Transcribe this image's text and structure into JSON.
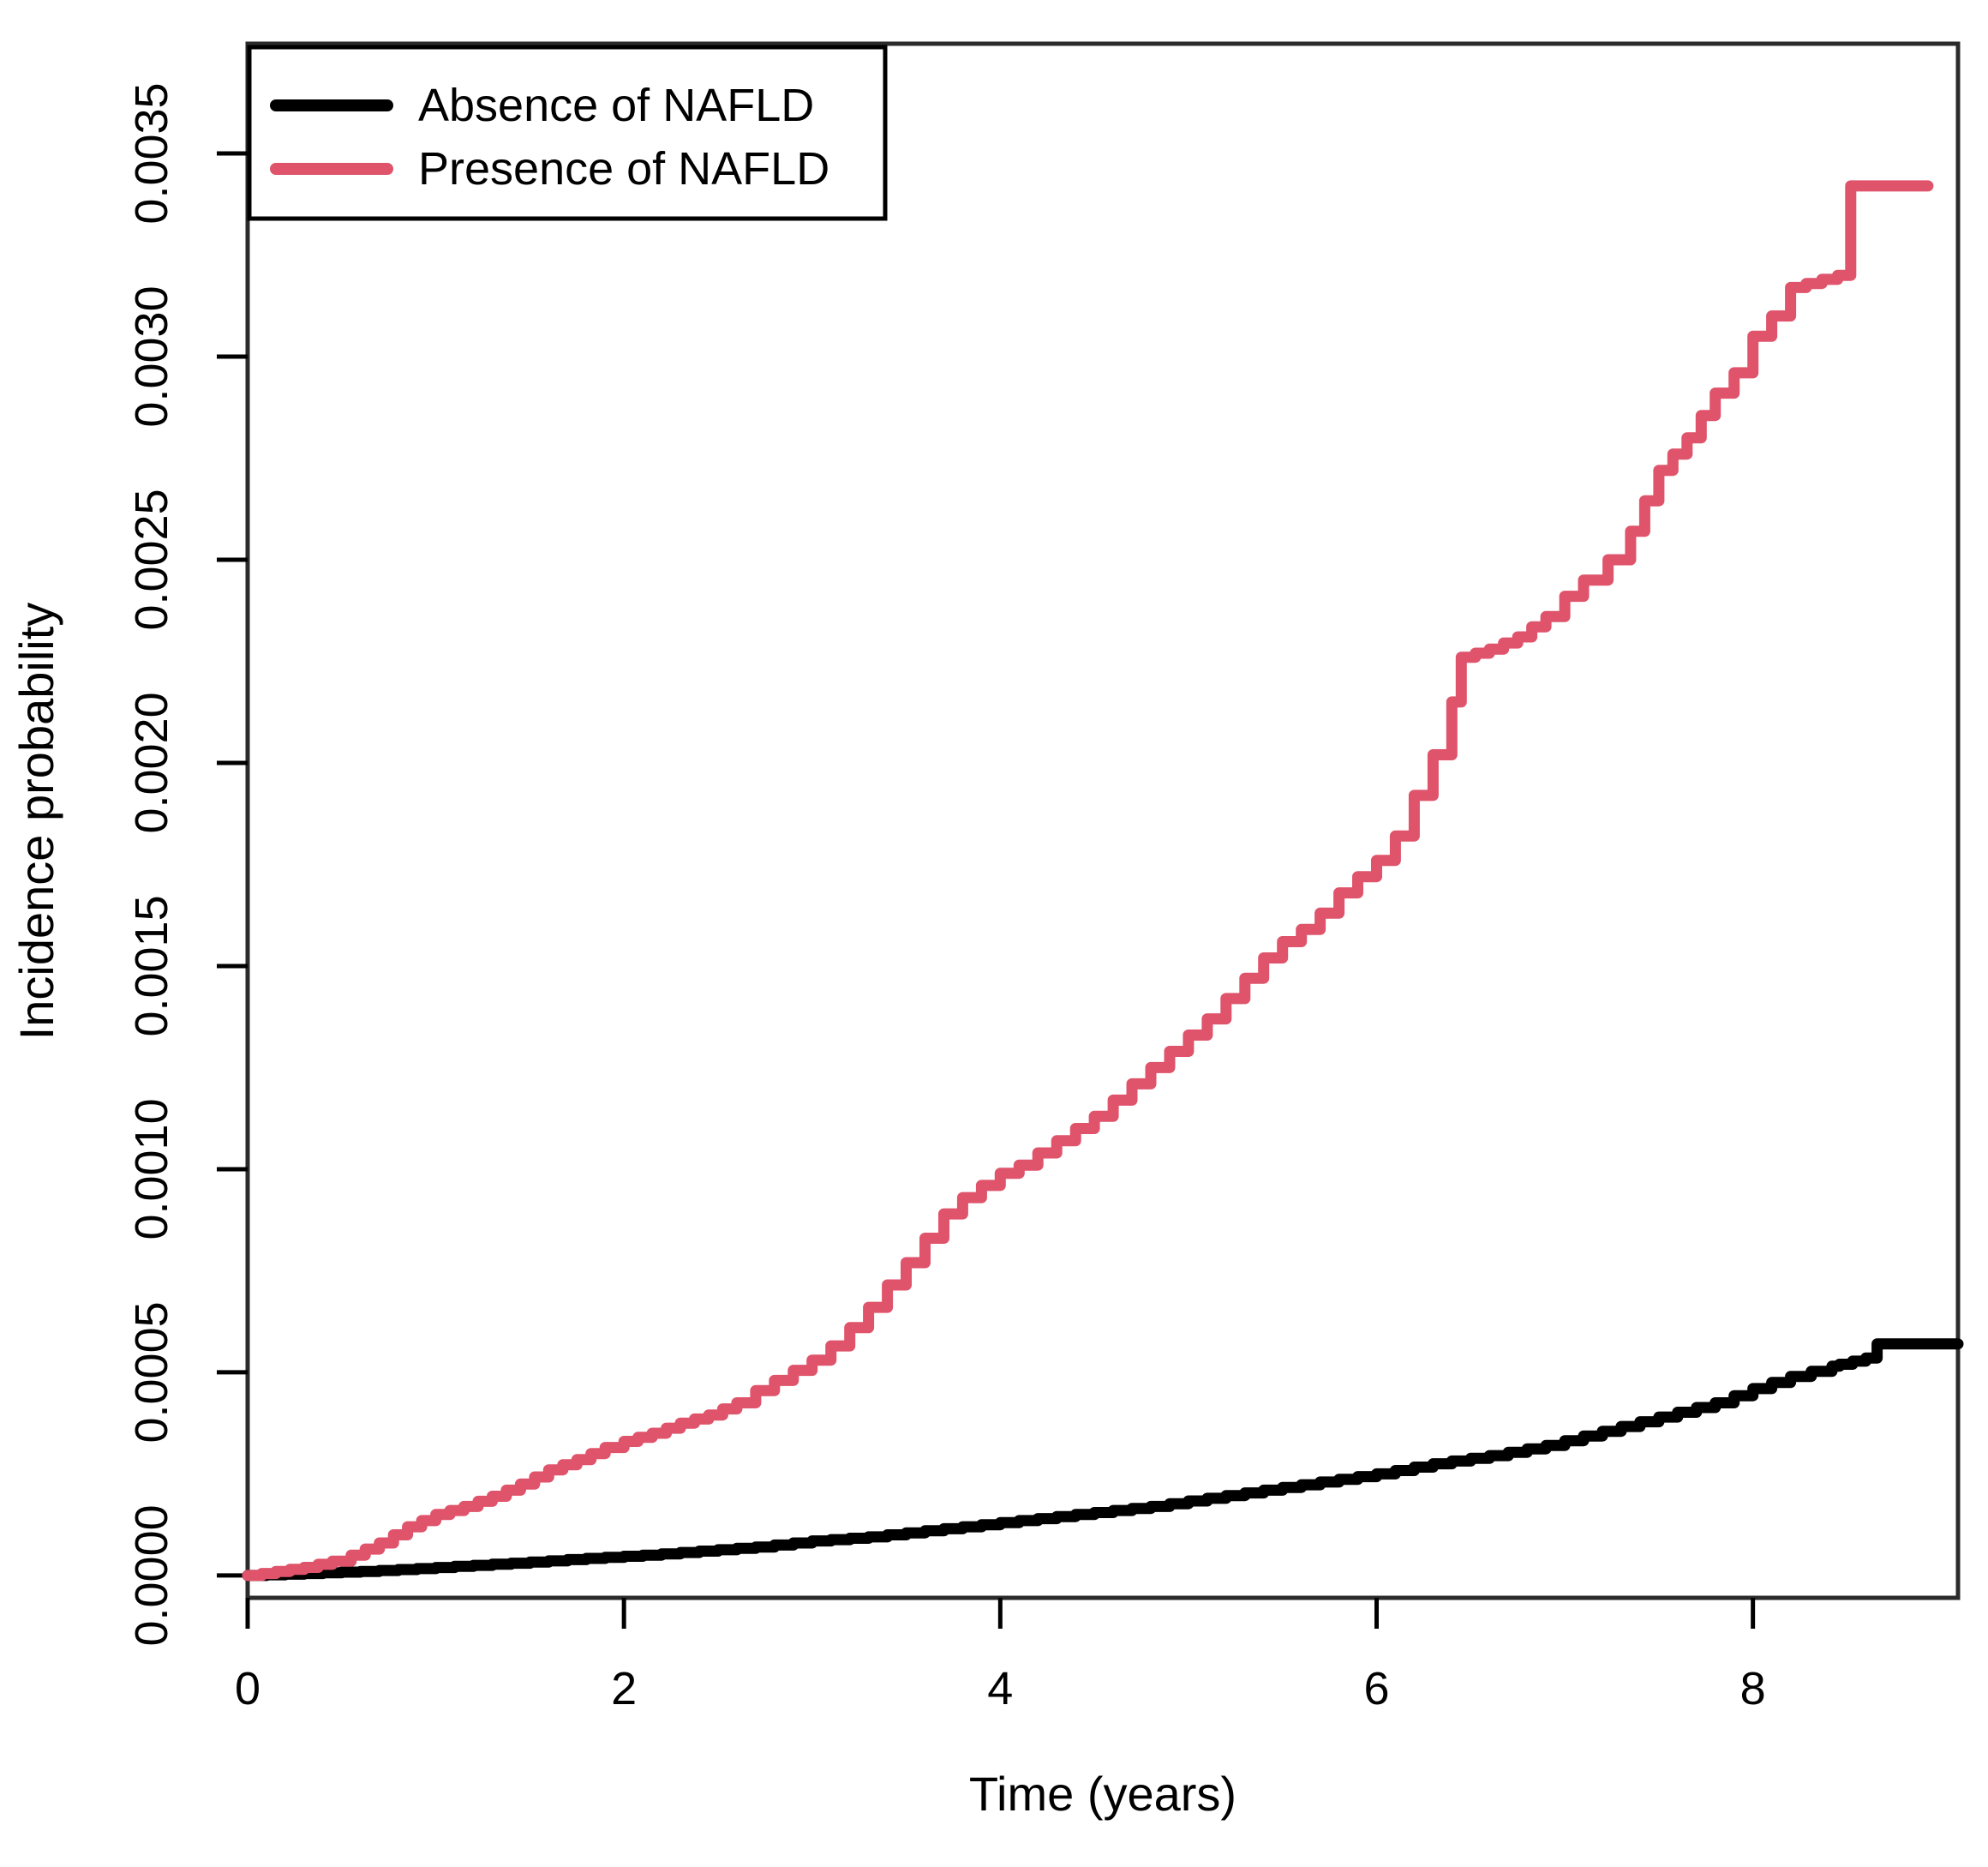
{
  "chart_data": {
    "type": "line",
    "subtype": "step",
    "title": "",
    "xlabel": "Time (years)",
    "ylabel": "Incidence probability",
    "xlim": [
      0,
      9.09
    ],
    "ylim": [
      -5.5e-05,
      0.00377
    ],
    "x_ticks": [
      0,
      2,
      4,
      6,
      8
    ],
    "x_tick_labels": [
      "0",
      "2",
      "4",
      "6",
      "8"
    ],
    "y_ticks": [
      0.0,
      0.0005,
      0.001,
      0.0015,
      0.002,
      0.0025,
      0.003,
      0.0035
    ],
    "y_tick_labels": [
      "0.0000",
      "0.0005",
      "0.0010",
      "0.0015",
      "0.0020",
      "0.0025",
      "0.0030",
      "0.0035"
    ],
    "grid": false,
    "legend_position": "top-left",
    "frame_color": "#2b2b2b",
    "series": [
      {
        "name": "Absence of NAFLD",
        "color": "#000000",
        "points": [
          [
            0,
            0
          ],
          [
            0.3,
            5e-06
          ],
          [
            0.6,
            1e-05
          ],
          [
            0.9,
            1.7e-05
          ],
          [
            1.2,
            2.5e-05
          ],
          [
            1.5,
            3.3e-05
          ],
          [
            1.8,
            4.2e-05
          ],
          [
            2.1,
            5e-05
          ],
          [
            2.4,
            6e-05
          ],
          [
            2.7,
            7e-05
          ],
          [
            3.0,
            8.5e-05
          ],
          [
            3.3,
            9.5e-05
          ],
          [
            3.6,
            0.00011
          ],
          [
            3.9,
            0.000125
          ],
          [
            4.2,
            0.00014
          ],
          [
            4.5,
            0.000155
          ],
          [
            4.8,
            0.00017
          ],
          [
            5.1,
            0.00019
          ],
          [
            5.4,
            0.00021
          ],
          [
            5.7,
            0.00023
          ],
          [
            6.0,
            0.00025
          ],
          [
            6.3,
            0.000275
          ],
          [
            6.6,
            0.000295
          ],
          [
            6.9,
            0.00032
          ],
          [
            7.2,
            0.000355
          ],
          [
            7.5,
            0.00039
          ],
          [
            7.8,
            0.000425
          ],
          [
            8.0,
            0.00046
          ],
          [
            8.2,
            0.00049
          ],
          [
            8.42,
            0.000515
          ],
          [
            8.46,
            0.00052
          ],
          [
            8.6,
            0.000535
          ],
          [
            8.66,
            0.00057
          ],
          [
            9.09,
            0.00057
          ]
        ]
      },
      {
        "name": "Presence of NAFLD",
        "color": "#DF536B",
        "points": [
          [
            0,
            0
          ],
          [
            0.15,
            1e-05
          ],
          [
            0.3,
            2e-05
          ],
          [
            0.45,
            3.5e-05
          ],
          [
            0.55,
            5e-05
          ],
          [
            0.7,
            8e-05
          ],
          [
            0.85,
            0.00012
          ],
          [
            1.0,
            0.00015
          ],
          [
            1.15,
            0.00017
          ],
          [
            1.3,
            0.000195
          ],
          [
            1.45,
            0.000225
          ],
          [
            1.6,
            0.00026
          ],
          [
            1.75,
            0.000285
          ],
          [
            1.9,
            0.000315
          ],
          [
            2.0,
            0.00033
          ],
          [
            2.15,
            0.00035
          ],
          [
            2.3,
            0.000375
          ],
          [
            2.45,
            0.000395
          ],
          [
            2.6,
            0.000425
          ],
          [
            2.7,
            0.000455
          ],
          [
            2.8,
            0.00048
          ],
          [
            2.9,
            0.000505
          ],
          [
            3.0,
            0.00053
          ],
          [
            3.1,
            0.000565
          ],
          [
            3.2,
            0.00061
          ],
          [
            3.3,
            0.00066
          ],
          [
            3.4,
            0.000715
          ],
          [
            3.5,
            0.00077
          ],
          [
            3.6,
            0.00083
          ],
          [
            3.7,
            0.00089
          ],
          [
            3.8,
            0.00093
          ],
          [
            3.9,
            0.00096
          ],
          [
            4.0,
            0.00099
          ],
          [
            4.1,
            0.00101
          ],
          [
            4.2,
            0.00104
          ],
          [
            4.3,
            0.00107
          ],
          [
            4.4,
            0.0011
          ],
          [
            4.5,
            0.00113
          ],
          [
            4.6,
            0.00117
          ],
          [
            4.7,
            0.00121
          ],
          [
            4.8,
            0.00125
          ],
          [
            4.9,
            0.00129
          ],
          [
            5.0,
            0.00133
          ],
          [
            5.1,
            0.00137
          ],
          [
            5.2,
            0.00142
          ],
          [
            5.3,
            0.00147
          ],
          [
            5.4,
            0.00152
          ],
          [
            5.5,
            0.00156
          ],
          [
            5.6,
            0.00159
          ],
          [
            5.7,
            0.00163
          ],
          [
            5.8,
            0.00168
          ],
          [
            5.9,
            0.00172
          ],
          [
            6.0,
            0.00176
          ],
          [
            6.1,
            0.00182
          ],
          [
            6.2,
            0.00192
          ],
          [
            6.3,
            0.00202
          ],
          [
            6.4,
            0.00215
          ],
          [
            6.45,
            0.00226
          ],
          [
            6.6,
            0.00228
          ],
          [
            6.75,
            0.00231
          ],
          [
            6.9,
            0.00236
          ],
          [
            7.0,
            0.00241
          ],
          [
            7.1,
            0.00245
          ],
          [
            7.23,
            0.0025
          ],
          [
            7.35,
            0.00257
          ],
          [
            7.5,
            0.00272
          ],
          [
            7.65,
            0.0028
          ],
          [
            7.8,
            0.00291
          ],
          [
            7.9,
            0.00296
          ],
          [
            8.0,
            0.00305
          ],
          [
            8.1,
            0.0031
          ],
          [
            8.2,
            0.00317
          ],
          [
            8.45,
            0.0032
          ],
          [
            8.52,
            0.00342
          ],
          [
            8.93,
            0.00342
          ]
        ]
      }
    ]
  },
  "legend": {
    "entries": [
      {
        "label": "Absence of NAFLD"
      },
      {
        "label": "Presence of NAFLD"
      }
    ]
  }
}
